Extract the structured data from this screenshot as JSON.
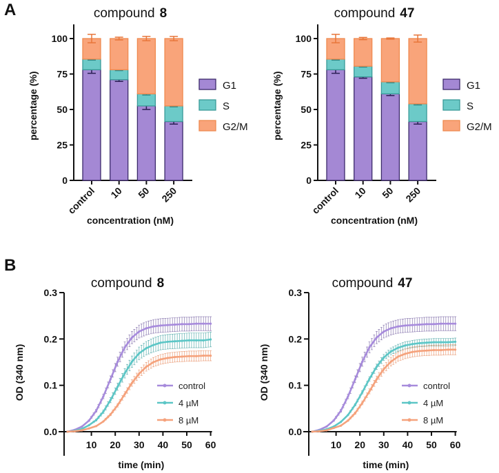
{
  "panel_labels": [
    "A",
    "B"
  ],
  "colors": {
    "G1": "#a488d4",
    "S": "#6ccac8",
    "G2M": "#f9a47a",
    "control": "#a78bdc",
    "4uM": "#5cc6c6",
    "8uM": "#f5a27c"
  },
  "chart_data": [
    {
      "type": "bar",
      "stacked": true,
      "title_prefix": "compound",
      "title_bold": "8",
      "xlabel": "concentration (nM)",
      "ylabel": "percentage (%)",
      "categories": [
        "control",
        "10",
        "50",
        "250"
      ],
      "ylim": [
        0,
        110
      ],
      "yticks": [
        "0",
        "25",
        "50",
        "75",
        "100"
      ],
      "legend": [
        "G1",
        "S",
        "G2/M"
      ],
      "legend_position": "right",
      "series": [
        {
          "name": "G1",
          "values": [
            78,
            71,
            52.5,
            41.5
          ],
          "error": [
            2.5,
            1.2,
            2.5,
            1.8
          ]
        },
        {
          "name": "S",
          "values": [
            7.5,
            7,
            8.5,
            11
          ],
          "error": [
            0.7,
            0.6,
            0.8,
            0.6
          ]
        },
        {
          "name": "G2/M",
          "values": [
            14.5,
            22,
            39,
            47.5
          ],
          "error": [
            3,
            1,
            1.5,
            1.5
          ]
        }
      ]
    },
    {
      "type": "bar",
      "stacked": true,
      "title_prefix": "compound",
      "title_bold": "47",
      "xlabel": "concentration (nM)",
      "ylabel": "percentage (%)",
      "categories": [
        "control",
        "10",
        "50",
        "250"
      ],
      "ylim": [
        0,
        110
      ],
      "yticks": [
        "0",
        "25",
        "50",
        "75",
        "100"
      ],
      "legend": [
        "G1",
        "S",
        "G2/M"
      ],
      "legend_position": "right",
      "series": [
        {
          "name": "G1",
          "values": [
            78,
            73,
            61,
            41.5
          ],
          "error": [
            2.5,
            1,
            1.2,
            1.8
          ]
        },
        {
          "name": "S",
          "values": [
            7.5,
            7.5,
            8.5,
            12.5
          ],
          "error": [
            0.7,
            0.6,
            0.6,
            0.8
          ]
        },
        {
          "name": "G2/M",
          "values": [
            14.5,
            19.5,
            30.5,
            46
          ],
          "error": [
            3,
            0.8,
            0.4,
            2.5
          ]
        }
      ]
    },
    {
      "type": "line",
      "title_prefix": "compound",
      "title_bold": "8",
      "xlabel": "time (min)",
      "ylabel": "OD (340 nm)",
      "xlim": [
        0,
        60
      ],
      "ylim": [
        0,
        0.3
      ],
      "xticks": [
        "10",
        "20",
        "30",
        "40",
        "50",
        "60"
      ],
      "yticks": [
        "0.0",
        "0.1",
        "0.2",
        "0.3"
      ],
      "legend_position": "bottom-right",
      "x": [
        0,
        3,
        6,
        9,
        12,
        15,
        18,
        21,
        24,
        27,
        30,
        33,
        36,
        39,
        42,
        45,
        48,
        51,
        54,
        57,
        60
      ],
      "series": [
        {
          "name": "control",
          "error_plateau": 0.015,
          "values": [
            0,
            0.004,
            0.011,
            0.024,
            0.045,
            0.076,
            0.113,
            0.151,
            0.182,
            0.203,
            0.216,
            0.223,
            0.227,
            0.229,
            0.23,
            0.231,
            0.232,
            0.232,
            0.233,
            0.233,
            0.233
          ]
        },
        {
          "name": "4 µM",
          "error_plateau": 0.016,
          "values": [
            0,
            0.002,
            0.006,
            0.014,
            0.025,
            0.043,
            0.068,
            0.097,
            0.126,
            0.151,
            0.169,
            0.18,
            0.187,
            0.192,
            0.194,
            0.195,
            0.196,
            0.197,
            0.197,
            0.197,
            0.199
          ]
        },
        {
          "name": "8 µM",
          "error_plateau": 0.011,
          "values": [
            0,
            0.001,
            0.003,
            0.007,
            0.012,
            0.022,
            0.037,
            0.057,
            0.081,
            0.105,
            0.125,
            0.14,
            0.15,
            0.156,
            0.159,
            0.161,
            0.162,
            0.163,
            0.163,
            0.164,
            0.164
          ]
        }
      ]
    },
    {
      "type": "line",
      "title_prefix": "compound",
      "title_bold": "47",
      "xlabel": "time (min)",
      "ylabel": "OD (340 nm)",
      "xlim": [
        0,
        60
      ],
      "ylim": [
        0,
        0.3
      ],
      "xticks": [
        "10",
        "20",
        "30",
        "40",
        "50",
        "60"
      ],
      "yticks": [
        "0.0",
        "0.1",
        "0.2",
        "0.3"
      ],
      "legend_position": "bottom-right",
      "x": [
        0,
        3,
        6,
        9,
        12,
        15,
        18,
        21,
        24,
        27,
        30,
        33,
        36,
        39,
        42,
        45,
        48,
        51,
        54,
        57,
        60
      ],
      "series": [
        {
          "name": "control",
          "error_plateau": 0.015,
          "values": [
            0,
            0.004,
            0.011,
            0.024,
            0.045,
            0.076,
            0.113,
            0.151,
            0.182,
            0.203,
            0.216,
            0.223,
            0.227,
            0.229,
            0.23,
            0.231,
            0.232,
            0.232,
            0.233,
            0.233,
            0.233
          ]
        },
        {
          "name": "4 µM",
          "error_plateau": 0.008,
          "values": [
            0,
            0.002,
            0.005,
            0.011,
            0.021,
            0.036,
            0.058,
            0.085,
            0.114,
            0.14,
            0.16,
            0.173,
            0.181,
            0.186,
            0.189,
            0.191,
            0.192,
            0.193,
            0.193,
            0.193,
            0.194
          ]
        },
        {
          "name": "8 µM",
          "error_plateau": 0.011,
          "values": [
            0,
            0.001,
            0.003,
            0.008,
            0.013,
            0.024,
            0.04,
            0.062,
            0.087,
            0.113,
            0.135,
            0.151,
            0.162,
            0.168,
            0.172,
            0.174,
            0.175,
            0.176,
            0.176,
            0.177,
            0.177
          ]
        }
      ]
    }
  ]
}
